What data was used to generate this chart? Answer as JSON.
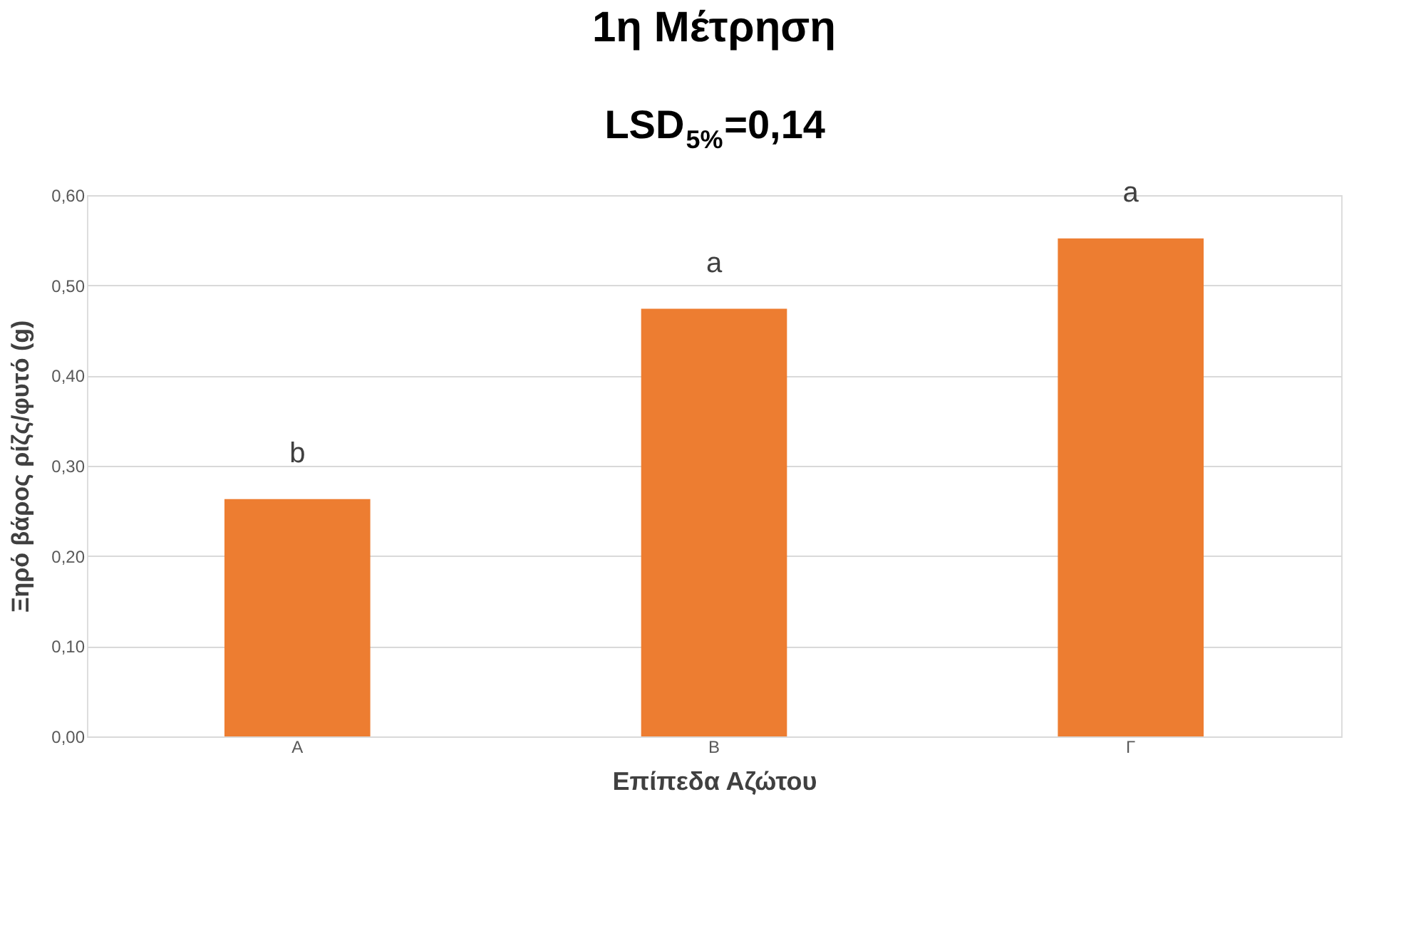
{
  "chart_data": {
    "type": "bar",
    "title": "1η Μέτρηση",
    "subtitle": "LSD$_{5%}$=0,14",
    "xlabel": "Επίπεδα Αζώτου",
    "ylabel": "Ξηρό βάρος ρίζς/φυτό (g)",
    "categories": [
      "Α",
      "Β",
      "Γ"
    ],
    "series": [
      {
        "color": "#ed7d31",
        "values": [
          0.263,
          0.474,
          0.552
        ]
      }
    ],
    "ylim": [
      0,
      0.6
    ],
    "yticks": [
      {
        "value": 0,
        "label": "0,00"
      },
      {
        "value": 0.1,
        "label": "0,10"
      },
      {
        "value": 0.2,
        "label": "0,20"
      },
      {
        "value": 0.3,
        "label": "0,30"
      },
      {
        "value": 0.4,
        "label": "0,40"
      },
      {
        "value": 0.5,
        "label": "0,50"
      },
      {
        "value": 0.6,
        "label": "0,60"
      }
    ],
    "annotations": [
      "b",
      "a",
      "a"
    ],
    "grid": "y"
  }
}
